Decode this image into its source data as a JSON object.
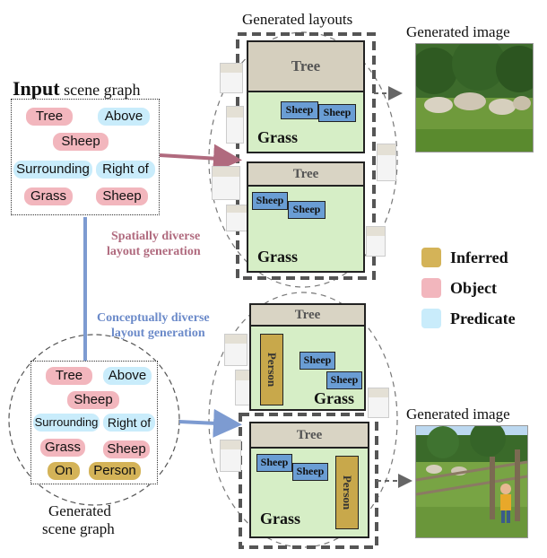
{
  "titles": {
    "generated_layouts": "Generated layouts",
    "generated_image": "Generated image",
    "input_bold": "Input",
    "input_rest": " scene graph",
    "generated_sg_line1": "Generated",
    "generated_sg_line2": "scene graph",
    "spatial_line1": "Spatially diverse",
    "spatial_line2": "layout generation",
    "conceptual_line1": "Conceptually diverse",
    "conceptual_line2": "layout generation"
  },
  "scene_graph": {
    "tree": "Tree",
    "above": "Above",
    "sheep": "Sheep",
    "surrounding": "Surrounding",
    "right_of": "Right of",
    "grass": "Grass",
    "sheep2": "Sheep",
    "on": "On",
    "person": "Person"
  },
  "layout": {
    "tree": "Tree",
    "grass": "Grass",
    "sheep": "Sheep",
    "person": "Person"
  },
  "legend": {
    "inferred": "Inferred",
    "object": "Object",
    "predicate": "Predicate",
    "inferred_color": "#d4b358",
    "object_color": "#f2b6bd",
    "predicate_color": "#c9ecfb"
  },
  "colors": {
    "spatial_arrow": "#b06a7e",
    "conceptual_arrow": "#7d9bd1"
  }
}
